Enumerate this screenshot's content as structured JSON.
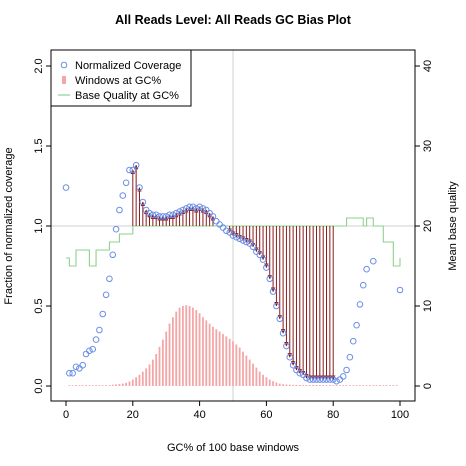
{
  "chart_data": {
    "type": "line",
    "title": "All Reads Level: All Reads GC Bias Plot",
    "xlabel": "GC% of 100 base windows",
    "ylabel": "Fraction of normalized coverage",
    "y2label": "Mean base quality",
    "xlim": [
      0,
      100
    ],
    "ylim": [
      0,
      2.0
    ],
    "y2lim": [
      0,
      40
    ],
    "x_ticks": [
      0,
      20,
      40,
      60,
      80,
      100
    ],
    "y_ticks": [
      0.0,
      0.5,
      1.0,
      1.5,
      2.0
    ],
    "y_tick_labels": [
      "0.0",
      "0.5",
      "1.0",
      "1.5",
      "2.0"
    ],
    "y2_ticks": [
      0,
      10,
      20,
      30,
      40
    ],
    "reference_lines": {
      "x": 50,
      "y": 1.0
    },
    "grid": false,
    "legend_position": "top-left",
    "colors": {
      "coverage": "#6b8ee8",
      "windows": "#f4a6a6",
      "quality": "#8fd18f",
      "arrows": "#8b1a1a",
      "reference": "#d0d0d0"
    },
    "series": [
      {
        "name": "Normalized Coverage",
        "style": "open-circles",
        "axis": "left",
        "x": [
          0,
          1,
          2,
          3,
          4,
          5,
          6,
          7,
          8,
          9,
          10,
          11,
          12,
          13,
          14,
          15,
          16,
          17,
          18,
          19,
          20,
          21,
          22,
          23,
          24,
          25,
          26,
          27,
          28,
          29,
          30,
          31,
          32,
          33,
          34,
          35,
          36,
          37,
          38,
          39,
          40,
          41,
          42,
          43,
          44,
          45,
          46,
          47,
          48,
          49,
          50,
          51,
          52,
          53,
          54,
          55,
          56,
          57,
          58,
          59,
          60,
          61,
          62,
          63,
          64,
          65,
          66,
          67,
          68,
          69,
          70,
          71,
          72,
          73,
          74,
          75,
          76,
          77,
          78,
          79,
          80,
          81,
          82,
          83,
          84,
          85,
          86,
          87,
          88,
          89,
          90,
          92,
          100
        ],
        "y": [
          1.24,
          0.08,
          0.08,
          0.12,
          0.11,
          0.13,
          0.2,
          0.22,
          0.23,
          0.29,
          0.35,
          0.45,
          0.57,
          0.67,
          0.82,
          0.98,
          1.1,
          1.19,
          1.27,
          1.35,
          1.35,
          1.38,
          1.24,
          1.15,
          1.1,
          1.08,
          1.07,
          1.07,
          1.06,
          1.06,
          1.06,
          1.07,
          1.07,
          1.08,
          1.09,
          1.1,
          1.11,
          1.12,
          1.12,
          1.11,
          1.12,
          1.11,
          1.1,
          1.08,
          1.06,
          1.03,
          1.01,
          0.99,
          0.97,
          0.96,
          0.94,
          0.93,
          0.92,
          0.91,
          0.9,
          0.89,
          0.87,
          0.84,
          0.82,
          0.79,
          0.74,
          0.67,
          0.59,
          0.5,
          0.42,
          0.33,
          0.25,
          0.18,
          0.13,
          0.1,
          0.08,
          0.07,
          0.05,
          0.04,
          0.04,
          0.04,
          0.04,
          0.04,
          0.04,
          0.04,
          0.04,
          0.03,
          0.04,
          0.06,
          0.1,
          0.18,
          0.28,
          0.38,
          0.51,
          0.63,
          0.73,
          0.78,
          0.6
        ]
      },
      {
        "name": "Windows at GC%",
        "style": "bars",
        "axis": "left",
        "x": [
          1,
          2,
          3,
          4,
          5,
          6,
          7,
          8,
          9,
          10,
          11,
          12,
          13,
          14,
          15,
          16,
          17,
          18,
          19,
          20,
          21,
          22,
          23,
          24,
          25,
          26,
          27,
          28,
          29,
          30,
          31,
          32,
          33,
          34,
          35,
          36,
          37,
          38,
          39,
          40,
          41,
          42,
          43,
          44,
          45,
          46,
          47,
          48,
          49,
          50,
          51,
          52,
          53,
          54,
          55,
          56,
          57,
          58,
          59,
          60,
          61,
          62,
          63,
          64,
          65,
          66,
          67,
          68,
          69,
          70,
          71,
          72,
          73,
          74,
          75,
          76,
          77,
          78,
          79,
          80,
          81,
          82,
          83,
          84,
          85,
          86,
          87,
          88,
          89,
          90,
          91,
          92,
          93,
          94,
          95,
          96,
          97,
          98,
          99
        ],
        "y": [
          0.005,
          0.005,
          0.005,
          0.005,
          0.005,
          0.005,
          0.005,
          0.005,
          0.005,
          0.005,
          0.005,
          0.005,
          0.005,
          0.008,
          0.01,
          0.012,
          0.015,
          0.02,
          0.028,
          0.04,
          0.055,
          0.07,
          0.09,
          0.11,
          0.135,
          0.165,
          0.2,
          0.245,
          0.29,
          0.34,
          0.39,
          0.43,
          0.465,
          0.49,
          0.5,
          0.505,
          0.5,
          0.49,
          0.475,
          0.455,
          0.43,
          0.41,
          0.39,
          0.37,
          0.355,
          0.34,
          0.325,
          0.31,
          0.295,
          0.28,
          0.26,
          0.24,
          0.215,
          0.19,
          0.165,
          0.14,
          0.115,
          0.09,
          0.07,
          0.055,
          0.04,
          0.03,
          0.022,
          0.015,
          0.011,
          0.009,
          0.008,
          0.007,
          0.007,
          0.006,
          0.006,
          0.006,
          0.006,
          0.006,
          0.006,
          0.006,
          0.006,
          0.005,
          0.005,
          0.005,
          0.005,
          0.005,
          0.005,
          0.005,
          0.005,
          0.005,
          0.005,
          0.005,
          0.005,
          0.005,
          0.005,
          0.005,
          0.005,
          0.005,
          0.005,
          0.005,
          0.005,
          0.005,
          0.005
        ]
      },
      {
        "name": "Base Quality at GC%",
        "style": "step-line",
        "axis": "right",
        "x": [
          0,
          1,
          2,
          3,
          4,
          5,
          6,
          7,
          8,
          9,
          10,
          11,
          12,
          13,
          14,
          15,
          16,
          17,
          18,
          19,
          20,
          21,
          22,
          23,
          24,
          25,
          26,
          27,
          28,
          29,
          30,
          31,
          32,
          33,
          34,
          35,
          36,
          37,
          38,
          39,
          40,
          41,
          42,
          43,
          44,
          45,
          46,
          47,
          48,
          49,
          50,
          51,
          52,
          53,
          54,
          55,
          56,
          57,
          58,
          59,
          60,
          61,
          62,
          63,
          64,
          65,
          66,
          67,
          68,
          69,
          70,
          71,
          72,
          73,
          74,
          75,
          76,
          77,
          78,
          79,
          80,
          81,
          82,
          83,
          84,
          85,
          86,
          87,
          88,
          89,
          90,
          91,
          92,
          93,
          94,
          95,
          96,
          97,
          98,
          99,
          100
        ],
        "y": [
          16,
          15,
          15,
          17,
          17,
          17,
          17,
          15,
          15,
          17,
          17,
          17,
          17,
          18,
          18,
          18,
          19,
          19,
          19,
          19,
          20,
          20,
          20,
          20,
          20,
          20,
          20,
          20,
          20,
          20,
          20,
          20,
          20,
          20,
          20,
          20,
          20,
          20,
          20,
          20,
          20,
          20,
          20,
          20,
          20,
          20,
          20,
          20,
          20,
          20,
          20,
          20,
          20,
          20,
          20,
          20,
          20,
          20,
          20,
          20,
          20,
          20,
          20,
          20,
          20,
          20,
          20,
          20,
          20,
          20,
          20,
          20,
          20,
          20,
          20,
          20,
          20,
          20,
          20,
          20,
          20,
          20,
          20,
          20,
          21,
          21,
          21,
          21,
          21,
          20,
          21,
          21,
          20,
          20,
          20,
          18,
          18,
          18,
          15,
          15,
          16
        ]
      }
    ]
  }
}
